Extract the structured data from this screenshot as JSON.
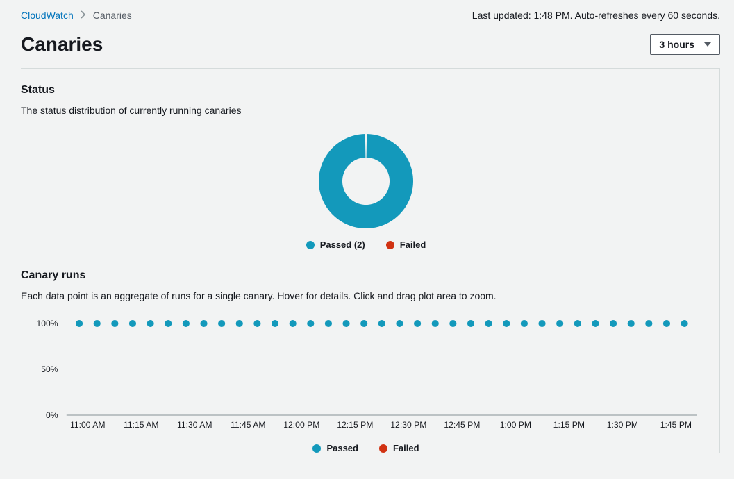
{
  "breadcrumb": {
    "root": "CloudWatch",
    "current": "Canaries"
  },
  "last_updated": "Last updated: 1:48 PM. Auto-refreshes every 60 seconds.",
  "page_title": "Canaries",
  "time_range": {
    "selected": "3 hours"
  },
  "status": {
    "title": "Status",
    "description": "The status distribution of currently running canaries",
    "donut": {
      "type": "donut",
      "slices": [
        {
          "label": "Passed",
          "value": 2,
          "color": "#1399bb"
        },
        {
          "label": "Failed",
          "value": 0,
          "color": "#d13212"
        }
      ],
      "outer_radius": 68,
      "inner_radius": 34,
      "background_color": "#f2f3f3",
      "gap_at_top_deg": 2
    },
    "legend": {
      "passed_label": "Passed (2)",
      "failed_label": "Failed",
      "passed_color": "#1399bb",
      "failed_color": "#d13212"
    }
  },
  "runs": {
    "title": "Canary runs",
    "description": "Each data point is an aggregate of runs for a single canary. Hover for details. Click and drag plot area to zoom.",
    "scatter": {
      "type": "scatter",
      "ylabel_ticks": [
        {
          "value": 0,
          "label": "0%"
        },
        {
          "value": 50,
          "label": "50%"
        },
        {
          "value": 100,
          "label": "100%"
        }
      ],
      "ylim": [
        0,
        100
      ],
      "x_tick_labels": [
        "11:00 AM",
        "11:15 AM",
        "11:30 AM",
        "11:45 AM",
        "12:00 PM",
        "12:15 PM",
        "12:30 PM",
        "12:45 PM",
        "1:00 PM",
        "1:15 PM",
        "1:30 PM",
        "1:45 PM"
      ],
      "n_points": 35,
      "point_value": 100,
      "point_color": "#1399bb",
      "point_radius": 5,
      "background_color": "#f2f3f3",
      "x_axis_color": "#879196",
      "label_fontsize": 12
    },
    "legend": {
      "passed_label": "Passed",
      "failed_label": "Failed",
      "passed_color": "#1399bb",
      "failed_color": "#d13212"
    }
  }
}
